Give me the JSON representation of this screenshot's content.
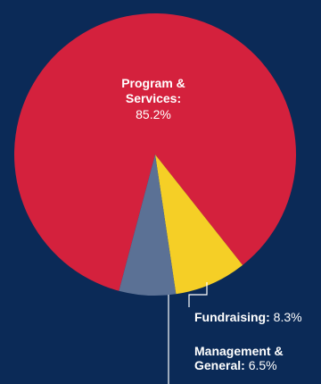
{
  "chart_data": {
    "type": "pie",
    "title": "",
    "slices": [
      {
        "name": "Program & Services",
        "value": 85.2,
        "color": "#d4213d",
        "label_lines": [
          "Program &",
          "Services:"
        ],
        "value_text": "85.2%"
      },
      {
        "name": "Fundraising",
        "value": 8.3,
        "color": "#f5cf26",
        "label_lines": [
          "Fundraising:"
        ],
        "value_text": "8.3%"
      },
      {
        "name": "Management & General",
        "value": 6.5,
        "color": "#5b7195",
        "label_lines": [
          "Management &",
          "General:"
        ],
        "value_text": "6.5%"
      }
    ]
  },
  "colors": {
    "background": "#0b2a57",
    "label_text": "#ffffff",
    "leader_line": "#ffffff"
  }
}
